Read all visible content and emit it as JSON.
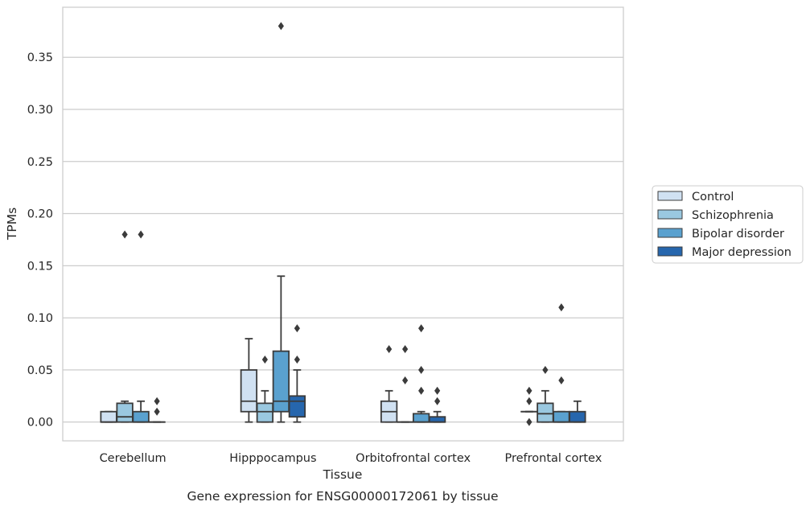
{
  "chart_data": {
    "type": "box",
    "caption": "Gene expression for ENSG00000172061 by tissue",
    "xlabel": "Tissue",
    "ylabel": "TPMs",
    "ylim": [
      -0.018,
      0.398
    ],
    "yticks": [
      0.0,
      0.05,
      0.1,
      0.15,
      0.2,
      0.25,
      0.3,
      0.35
    ],
    "ytick_labels": [
      "0.00",
      "0.05",
      "0.10",
      "0.15",
      "0.20",
      "0.25",
      "0.30",
      "0.35"
    ],
    "grid": "horizontal",
    "legend_position": "right",
    "categories": [
      "Cerebellum",
      "Hipppocampus",
      "Orbitofrontal cortex",
      "Prefrontal cortex"
    ],
    "series": [
      {
        "name": "Control",
        "color": "#d0e1f2",
        "boxes": [
          {
            "whislo": 0.0,
            "q1": 0.0,
            "med": 0.0,
            "q3": 0.01,
            "whishi": 0.01,
            "fliers": []
          },
          {
            "whislo": 0.0,
            "q1": 0.01,
            "med": 0.02,
            "q3": 0.05,
            "whishi": 0.08,
            "fliers": []
          },
          {
            "whislo": 0.0,
            "q1": 0.0,
            "med": 0.01,
            "q3": 0.02,
            "whishi": 0.03,
            "fliers": [
              0.07
            ]
          },
          {
            "whislo": 0.01,
            "q1": 0.01,
            "med": 0.01,
            "q3": 0.01,
            "whishi": 0.01,
            "fliers": [
              0.0,
              0.02,
              0.03
            ]
          }
        ]
      },
      {
        "name": "Schizophrenia",
        "color": "#9ac8e0",
        "boxes": [
          {
            "whislo": 0.0,
            "q1": 0.0,
            "med": 0.005,
            "q3": 0.018,
            "whishi": 0.02,
            "fliers": [
              0.18
            ]
          },
          {
            "whislo": 0.0,
            "q1": 0.0,
            "med": 0.01,
            "q3": 0.018,
            "whishi": 0.03,
            "fliers": [
              0.06
            ]
          },
          {
            "whislo": 0.0,
            "q1": 0.0,
            "med": 0.0,
            "q3": 0.0,
            "whishi": 0.0,
            "fliers": [
              0.04,
              0.07
            ]
          },
          {
            "whislo": 0.0,
            "q1": 0.0,
            "med": 0.008,
            "q3": 0.018,
            "whishi": 0.03,
            "fliers": [
              0.05
            ]
          }
        ]
      },
      {
        "name": "Bipolar disorder",
        "color": "#5aa1cf",
        "boxes": [
          {
            "whislo": 0.0,
            "q1": 0.0,
            "med": 0.0,
            "q3": 0.01,
            "whishi": 0.02,
            "fliers": [
              0.18
            ]
          },
          {
            "whislo": 0.0,
            "q1": 0.01,
            "med": 0.02,
            "q3": 0.068,
            "whishi": 0.14,
            "fliers": [
              0.38
            ]
          },
          {
            "whislo": 0.0,
            "q1": 0.0,
            "med": 0.0,
            "q3": 0.008,
            "whishi": 0.01,
            "fliers": [
              0.03,
              0.05,
              0.09
            ]
          },
          {
            "whislo": 0.0,
            "q1": 0.0,
            "med": 0.0,
            "q3": 0.01,
            "whishi": 0.01,
            "fliers": [
              0.04,
              0.11
            ]
          }
        ]
      },
      {
        "name": "Major depression",
        "color": "#2666ad",
        "boxes": [
          {
            "whislo": 0.0,
            "q1": 0.0,
            "med": 0.0,
            "q3": 0.0,
            "whishi": 0.0,
            "fliers": [
              0.01,
              0.02
            ]
          },
          {
            "whislo": 0.0,
            "q1": 0.005,
            "med": 0.02,
            "q3": 0.025,
            "whishi": 0.05,
            "fliers": [
              0.06,
              0.09
            ]
          },
          {
            "whislo": 0.0,
            "q1": 0.0,
            "med": 0.0,
            "q3": 0.005,
            "whishi": 0.01,
            "fliers": [
              0.02,
              0.03
            ]
          },
          {
            "whislo": 0.0,
            "q1": 0.0,
            "med": 0.0,
            "q3": 0.01,
            "whishi": 0.02,
            "fliers": []
          }
        ]
      }
    ]
  }
}
